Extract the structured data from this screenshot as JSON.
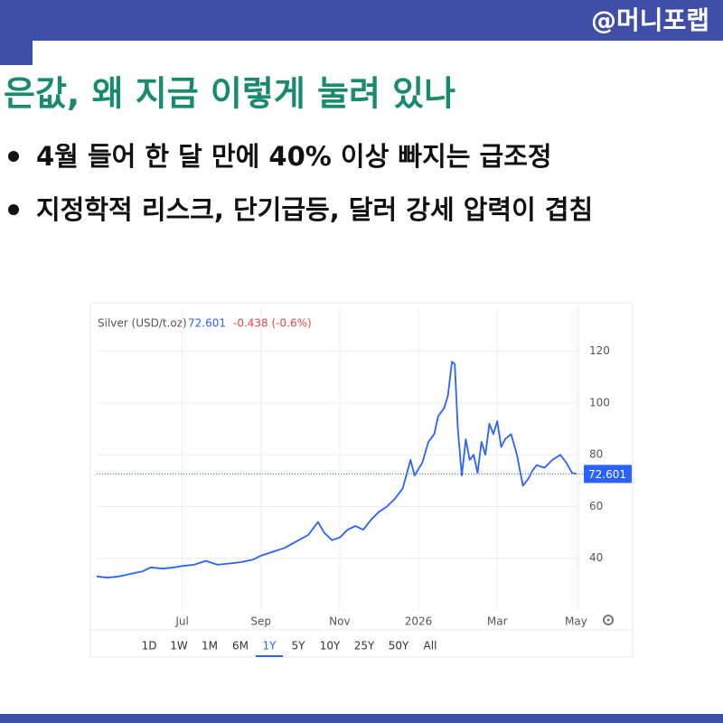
{
  "brand": "@머니포랩",
  "title": "은값, 왜 지금 이렇게 눌려 있나",
  "bullets": [
    "4월 들어 한 달 만에 40% 이상 빠지는 급조정",
    "지정학적 리스크, 단기급등, 달러 강세 압력이 겹침"
  ],
  "chart_data": {
    "type": "line",
    "legend_label": "Silver (USD/t.oz)",
    "last": 72.601,
    "change": "-0.438 (-0.6%)",
    "ranges": [
      "1D",
      "1W",
      "1M",
      "6M",
      "1Y",
      "5Y",
      "10Y",
      "25Y",
      "50Y",
      "All"
    ],
    "selected_range": 4,
    "xlim": [
      -8.17,
      4.06
    ],
    "xticks": [
      {
        "value": -6,
        "label": "Jul"
      },
      {
        "value": -4,
        "label": "Sep"
      },
      {
        "value": -2,
        "label": "Nov"
      },
      {
        "value": 0,
        "label": "2026"
      },
      {
        "value": 2,
        "label": "Mar"
      },
      {
        "value": 4,
        "label": "May"
      }
    ],
    "ylim": [
      20,
      137
    ],
    "yticks": [
      40,
      60,
      80,
      100,
      120
    ],
    "grid": true,
    "series": [
      {
        "name": "Silver (USD/t.oz)",
        "color": "#2962ff",
        "x": [
          -8.17,
          -7.9,
          -7.6,
          -7.3,
          -7.0,
          -6.8,
          -6.5,
          -6.2,
          -6.0,
          -5.7,
          -5.4,
          -5.1,
          -4.8,
          -4.5,
          -4.2,
          -4.0,
          -3.7,
          -3.4,
          -3.1,
          -2.8,
          -2.55,
          -2.4,
          -2.2,
          -2.0,
          -1.8,
          -1.6,
          -1.4,
          -1.2,
          -1.0,
          -0.8,
          -0.6,
          -0.4,
          -0.2,
          -0.1,
          0.1,
          0.25,
          0.4,
          0.5,
          0.65,
          0.75,
          0.85,
          0.92,
          1.0,
          1.1,
          1.2,
          1.3,
          1.4,
          1.5,
          1.6,
          1.7,
          1.8,
          1.9,
          2.0,
          2.1,
          2.2,
          2.35,
          2.5,
          2.65,
          2.8,
          2.9,
          3.0,
          3.2,
          3.4,
          3.6,
          3.75,
          3.9,
          4.0
        ],
        "values": [
          33,
          32.5,
          33,
          34,
          35,
          36.5,
          36,
          36.5,
          37,
          37.5,
          39,
          37.5,
          38,
          38.5,
          39.5,
          41,
          42.5,
          44,
          46.5,
          49,
          54,
          50,
          47,
          48,
          51,
          52.5,
          51,
          55,
          58,
          60,
          63,
          67,
          78,
          72,
          77,
          85,
          88,
          95,
          98,
          103,
          116,
          115,
          90,
          72,
          86,
          78,
          80,
          73,
          85,
          80,
          92,
          88,
          93,
          83,
          86,
          88,
          80,
          68,
          71,
          74,
          76,
          75,
          78,
          80,
          77,
          73,
          72.601
        ]
      }
    ]
  }
}
